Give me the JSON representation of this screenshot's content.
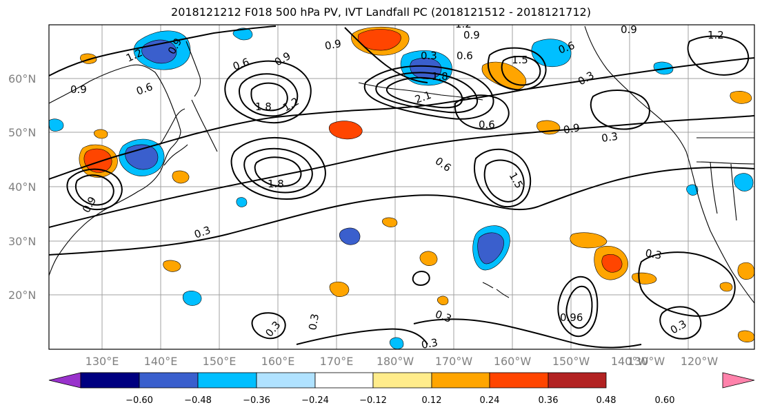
{
  "title": "2018121212 F018 500 hPa PV, IVT Landfall PC (2018121512 - 2018121712)",
  "lat_labels": [
    "60°N",
    "50°N",
    "40°N",
    "30°N",
    "20°N"
  ],
  "lon_labels": [
    "130°E",
    "140°E",
    "150°E",
    "160°E",
    "170°E",
    "180°W",
    "170°W",
    "160°W",
    "150°W",
    "140°W",
    "130°W",
    "120°W"
  ],
  "colorbar": {
    "ticks": [
      "−0.60",
      "−0.48",
      "−0.36",
      "−0.24",
      "−0.12",
      "0.12",
      "0.24",
      "0.36",
      "0.48",
      "0.60"
    ],
    "colors": [
      "#9932CC",
      "#000080",
      "#3A5FCD",
      "#00BFFF",
      "#B0E2FF",
      "#FFFFFF",
      "#FFEC8B",
      "#FFA500",
      "#FF4500",
      "#B22222",
      "#FF82AB"
    ]
  },
  "contour_labels": [
    "1.2",
    "0.9",
    "0.9",
    "0.6",
    "0.6",
    "0.9",
    "0.9",
    "1.8",
    "1.2",
    "1.8",
    "0.9",
    "1.2",
    "2.1",
    "1.8",
    "0.9",
    "0.6",
    "0.3",
    "1.5",
    "0.6",
    "0.3",
    "0.9",
    "0.3",
    "0.6",
    "0.6",
    "1.5",
    "0.3",
    "0.3",
    "0.3",
    "0.96",
    "0.3",
    "0.3",
    "0.3",
    "0.9",
    "0.3",
    "1.2"
  ],
  "colors": {
    "positive": "#FFA500",
    "strong_positive": "#FF4500",
    "negative": "#00BFFF",
    "strong_negative": "#3A5FCD"
  }
}
